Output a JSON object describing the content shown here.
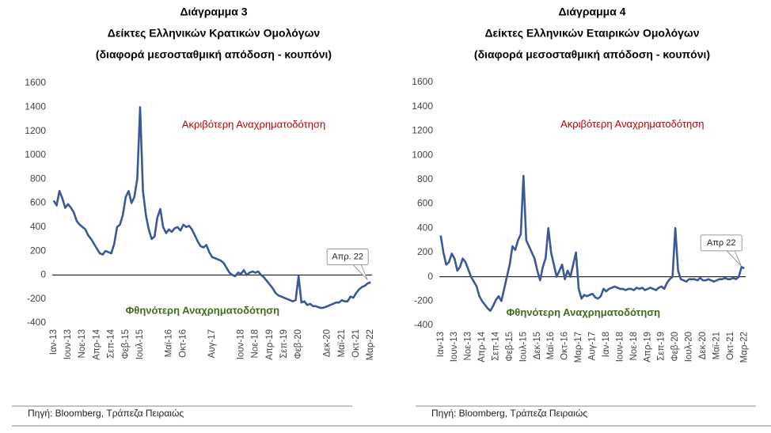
{
  "chart_data": [
    {
      "type": "line",
      "title": "Διάγραμμα 3",
      "subtitle": [
        "Δείκτες Ελληνικών Κρατικών Ομολόγων",
        "(διαφορά μεσοσταθμική απόδοση - κουπόνι)"
      ],
      "categories": [
        "Ιαν-13",
        null,
        null,
        null,
        null,
        "Ιουν-13",
        null,
        null,
        null,
        null,
        "Νοε-13",
        null,
        null,
        null,
        null,
        "Απρ-14",
        null,
        null,
        null,
        null,
        "Σεπ-14",
        null,
        null,
        null,
        null,
        "Φεβ-15",
        null,
        null,
        null,
        null,
        "Ιουλ-15",
        null,
        null,
        null,
        null,
        null,
        null,
        null,
        null,
        null,
        "Μαϊ-16",
        null,
        null,
        null,
        null,
        "Οκτ-16",
        null,
        null,
        null,
        null,
        null,
        null,
        null,
        null,
        null,
        "Αυγ-17",
        null,
        null,
        null,
        null,
        null,
        null,
        null,
        null,
        null,
        "Ιουν-18",
        null,
        null,
        null,
        null,
        "Νοε-18",
        null,
        null,
        null,
        null,
        "Απρ-19",
        null,
        null,
        null,
        null,
        "Σεπ-19",
        null,
        null,
        null,
        null,
        "Φεβ-20",
        null,
        null,
        null,
        null,
        null,
        null,
        null,
        null,
        null,
        "Δεκ-20",
        null,
        null,
        null,
        null,
        "Μαϊ-21",
        null,
        null,
        null,
        null,
        "Οκτ-21",
        null,
        null,
        null,
        null,
        "Μαρ-22"
      ],
      "values": [
        620,
        580,
        700,
        640,
        560,
        590,
        560,
        520,
        450,
        420,
        400,
        380,
        330,
        300,
        260,
        220,
        180,
        170,
        200,
        190,
        180,
        260,
        400,
        420,
        500,
        650,
        700,
        600,
        650,
        800,
        1400,
        700,
        500,
        380,
        300,
        320,
        480,
        550,
        400,
        350,
        380,
        360,
        390,
        400,
        370,
        420,
        400,
        410,
        380,
        330,
        280,
        240,
        230,
        250,
        190,
        150,
        140,
        130,
        120,
        100,
        60,
        20,
        0,
        -10,
        20,
        10,
        40,
        0,
        20,
        30,
        20,
        30,
        0,
        -20,
        -50,
        -80,
        -110,
        -150,
        -170,
        -180,
        -190,
        -200,
        -210,
        -220,
        -210,
        -10,
        -230,
        -220,
        -250,
        -240,
        -260,
        -260,
        -270,
        -275,
        -270,
        -260,
        -250,
        -240,
        -230,
        -230,
        -210,
        -220,
        -220,
        -180,
        -190,
        -150,
        -120,
        -100,
        -90,
        -70,
        -60
      ],
      "color": "#3b5998",
      "ylim": [
        -400,
        1600
      ],
      "yticks": [
        -400,
        -200,
        0,
        200,
        400,
        600,
        800,
        1000,
        1200,
        1400,
        1600
      ],
      "annotations": [
        "Ακριβότερη Αναχρηματοδότηση",
        "Φθηνότερη Αναχρηματοδότηση"
      ],
      "callout": "Απρ. 22",
      "source": "Πηγή: Bloomberg, Τράπεζα Πειραιώς"
    },
    {
      "type": "line",
      "title": "Διάγραμμα 4",
      "subtitle": [
        "Δείκτες Ελληνικών Εταιρικών Ομολόγων",
        "(διαφορά μεσοσταθμική απόδοση - κουπόνι)"
      ],
      "categories": [
        "Ιαν-13",
        null,
        null,
        null,
        null,
        "Ιουν-13",
        null,
        null,
        null,
        null,
        "Νοε-13",
        null,
        null,
        null,
        null,
        "Απρ-14",
        null,
        null,
        null,
        null,
        "Σεπ-14",
        null,
        null,
        null,
        null,
        "Φεβ-15",
        null,
        null,
        null,
        null,
        "Ιουλ-15",
        null,
        null,
        null,
        null,
        "Δεκ-15",
        null,
        null,
        null,
        null,
        "Μαϊ-16",
        null,
        null,
        null,
        null,
        "Οκτ-16",
        null,
        null,
        null,
        null,
        "Μαρ-17",
        null,
        null,
        null,
        null,
        "Αυγ-17",
        null,
        null,
        null,
        null,
        "Ιαν-18",
        null,
        null,
        null,
        null,
        "Ιουν-18",
        null,
        null,
        null,
        null,
        "Νοε-18",
        null,
        null,
        null,
        null,
        "Απρ-19",
        null,
        null,
        null,
        null,
        "Σεπ-19",
        null,
        null,
        null,
        null,
        "Φεβ-20",
        null,
        null,
        null,
        null,
        "Ιουλ-20",
        null,
        null,
        null,
        null,
        "Δεκ-20",
        null,
        null,
        null,
        null,
        "Μαϊ-21",
        null,
        null,
        null,
        null,
        "Οκτ-21",
        null,
        null,
        null,
        null,
        "Μαρ-22"
      ],
      "values": [
        340,
        200,
        100,
        120,
        190,
        150,
        50,
        80,
        150,
        120,
        60,
        0,
        -40,
        -80,
        -160,
        -200,
        -230,
        -260,
        -280,
        -240,
        -190,
        -160,
        -200,
        -100,
        0,
        100,
        250,
        220,
        300,
        350,
        830,
        300,
        250,
        200,
        150,
        50,
        -30,
        80,
        150,
        400,
        200,
        100,
        0,
        50,
        100,
        -20,
        50,
        0,
        100,
        200,
        -100,
        -180,
        -150,
        -160,
        -150,
        -140,
        -170,
        -180,
        -160,
        -100,
        -120,
        -100,
        -90,
        -80,
        -90,
        -100,
        -100,
        -110,
        -100,
        -100,
        -110,
        -90,
        -100,
        -90,
        -110,
        -100,
        -90,
        -100,
        -110,
        -90,
        -80,
        -100,
        -50,
        -20,
        0,
        400,
        50,
        -20,
        -30,
        -40,
        -20,
        -20,
        -20,
        -30,
        -10,
        -30,
        -30,
        -20,
        -30,
        -40,
        -30,
        -20,
        -20,
        -10,
        -20,
        -20,
        -10,
        -20,
        0,
        80,
        70
      ],
      "color": "#3b5998",
      "ylim": [
        -400,
        1600
      ],
      "yticks": [
        -400,
        -200,
        0,
        200,
        400,
        600,
        800,
        1000,
        1200,
        1400,
        1600
      ],
      "annotations": [
        "Ακριβότερη Αναχρηματοδότηση",
        "Φθηνότερη Αναχρηματοδότηση"
      ],
      "callout": "Απρ 22",
      "source": "Πηγή: Bloomberg, Τράπεζα Πειραιώς"
    }
  ]
}
